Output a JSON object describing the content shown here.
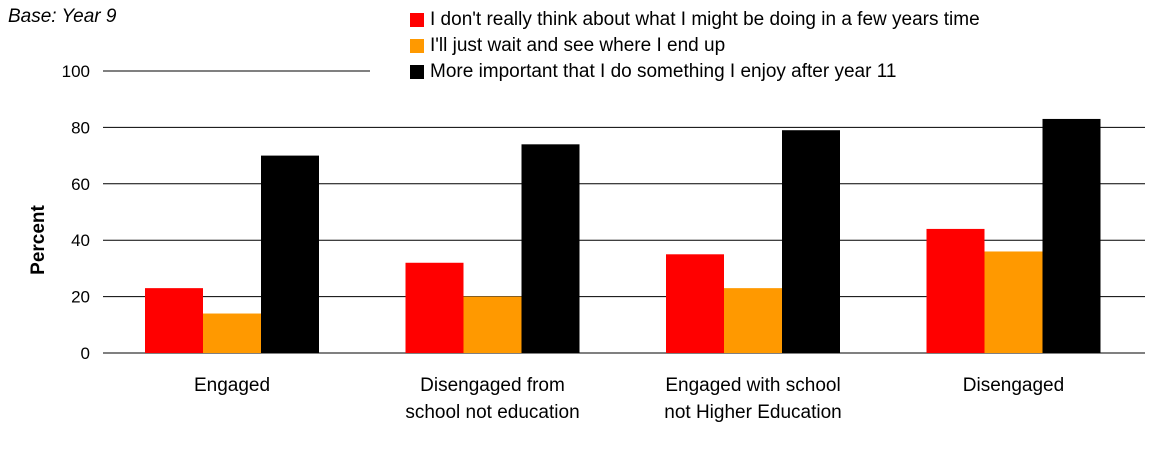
{
  "base_note": "Base: Year 9",
  "chart_data": {
    "type": "bar",
    "categories": [
      [
        "Engaged"
      ],
      [
        "Disengaged from",
        "school not education"
      ],
      [
        "Engaged with school",
        "not Higher Education"
      ],
      [
        "Disengaged"
      ]
    ],
    "series": [
      {
        "name": "I don't really think about what I might be doing in a few years time",
        "color": "#ff0000",
        "values": [
          23,
          32,
          35,
          44
        ]
      },
      {
        "name": "I'll just wait and see where I end up",
        "color": "#ff9900",
        "values": [
          14,
          20,
          23,
          36
        ]
      },
      {
        "name": "More important that I do something I enjoy after year 11",
        "color": "#000000",
        "values": [
          70,
          74,
          79,
          83
        ]
      }
    ],
    "ylabel": "Percent",
    "ylim": [
      0,
      100
    ],
    "yticks": [
      0,
      20,
      40,
      60,
      80,
      100
    ],
    "grid": true,
    "legend": "top-right"
  }
}
